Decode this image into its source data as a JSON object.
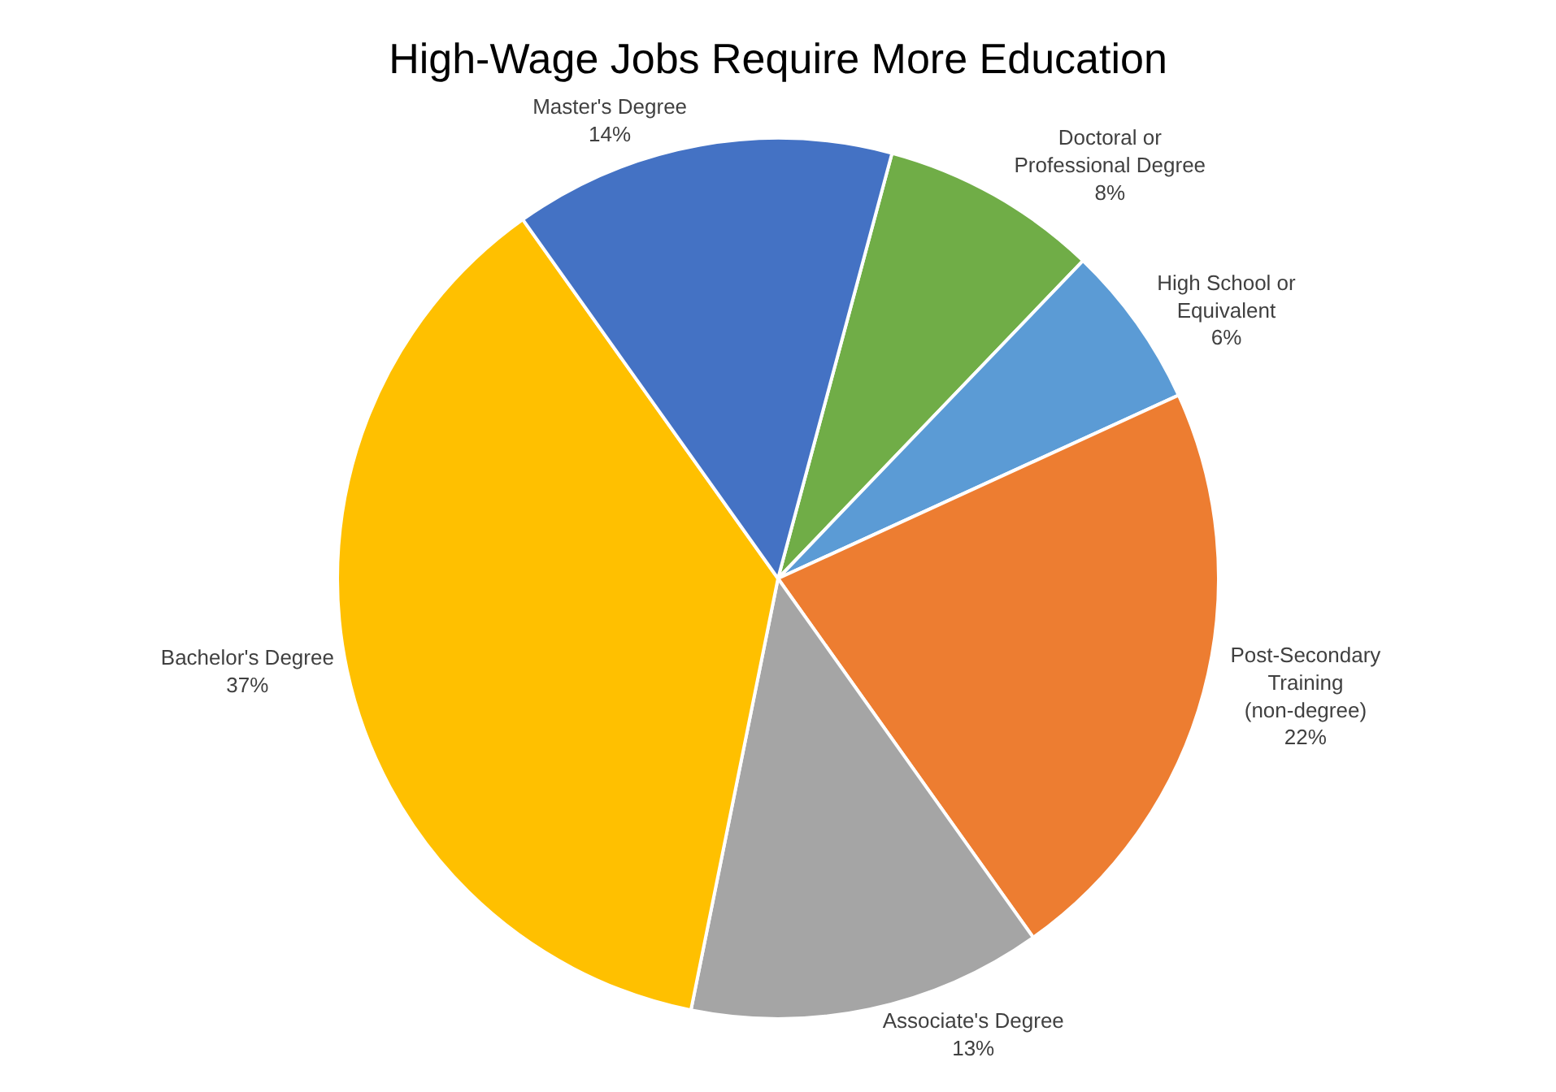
{
  "chart_data": {
    "type": "pie",
    "title": "High-Wage Jobs Require More Education",
    "categories": [
      "Doctoral or Professional Degree",
      "High School or Equivalent",
      "Post-Secondary Training (non-degree)",
      "Associate's Degree",
      "Bachelor's Degree",
      "Master's Degree"
    ],
    "values": [
      8,
      6,
      22,
      13,
      37,
      14
    ],
    "value_labels": [
      "8%",
      "6%",
      "22%",
      "13%",
      "37%",
      "14%"
    ],
    "colors": [
      "#70ad47",
      "#5b9bd5",
      "#ed7d31",
      "#a5a5a5",
      "#ffc000",
      "#4472c4"
    ],
    "legend": false
  }
}
